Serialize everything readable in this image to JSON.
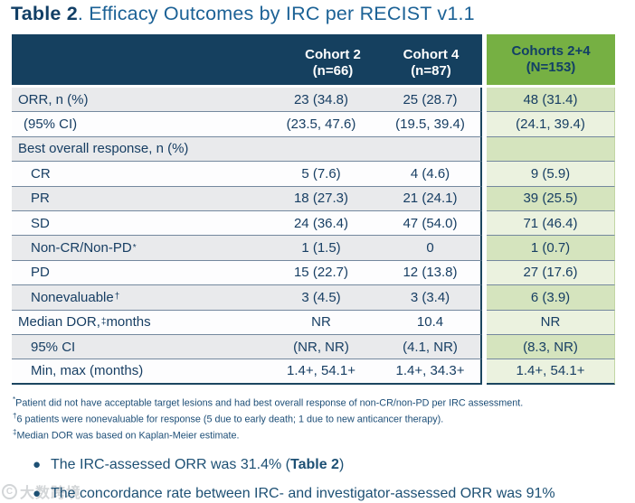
{
  "title": {
    "bold": "Table 2",
    "rest": ". Efficacy Outcomes by IRC per RECIST v1.1"
  },
  "table": {
    "header": {
      "cohort2": {
        "label": "Cohort 2",
        "sub": "(n=66)"
      },
      "cohort4": {
        "label": "Cohort 4",
        "sub": "(n=87)"
      },
      "cohorts24": {
        "label": "Cohorts 2+4",
        "sub": "(N=153)"
      }
    },
    "rows": [
      {
        "label": "ORR, n (%)",
        "sup": "",
        "after": "",
        "indent": 0,
        "c2": "23 (34.8)",
        "c4": "25 (28.7)",
        "c24": "48 (31.4)"
      },
      {
        "label": "(95% CI)",
        "sup": "",
        "after": "",
        "indent": 1,
        "c2": "(23.5, 47.6)",
        "c4": "(19.5, 39.4)",
        "c24": "(24.1, 39.4)"
      },
      {
        "label": "Best overall response, n (%)",
        "sup": "",
        "after": "",
        "indent": 0,
        "c2": "",
        "c4": "",
        "c24": ""
      },
      {
        "label": "CR",
        "sup": "",
        "after": "",
        "indent": 2,
        "c2": "5 (7.6)",
        "c4": "4 (4.6)",
        "c24": "9 (5.9)"
      },
      {
        "label": "PR",
        "sup": "",
        "after": "",
        "indent": 2,
        "c2": "18 (27.3)",
        "c4": "21 (24.1)",
        "c24": "39 (25.5)"
      },
      {
        "label": "SD",
        "sup": "",
        "after": "",
        "indent": 2,
        "c2": "24 (36.4)",
        "c4": "47 (54.0)",
        "c24": "71 (46.4)"
      },
      {
        "label": "Non-CR/Non-PD",
        "sup": "*",
        "after": "",
        "indent": 2,
        "c2": "1 (1.5)",
        "c4": "0",
        "c24": "1 (0.7)"
      },
      {
        "label": "PD",
        "sup": "",
        "after": "",
        "indent": 2,
        "c2": "15 (22.7)",
        "c4": "12 (13.8)",
        "c24": "27 (17.6)"
      },
      {
        "label": "Nonevaluable",
        "sup": "†",
        "after": "",
        "indent": 2,
        "c2": "3 (4.5)",
        "c4": "3 (3.4)",
        "c24": "6 (3.9)"
      },
      {
        "label": "Median DOR,",
        "sup": "‡",
        "after": " months",
        "indent": 0,
        "c2": "NR",
        "c4": "10.4",
        "c24": "NR"
      },
      {
        "label": "95% CI",
        "sup": "",
        "after": "",
        "indent": 2,
        "c2": "(NR, NR)",
        "c4": "(4.1, NR)",
        "c24": "(8.3, NR)"
      },
      {
        "label": "Min, max (months)",
        "sup": "",
        "after": "",
        "indent": 2,
        "c2": "1.4+, 54.1+",
        "c4": "1.4+, 34.3+",
        "c24": "1.4+, 54.1+"
      }
    ]
  },
  "footnotes": [
    {
      "marker": "*",
      "text": "Patient did not have acceptable target lesions and had best overall response of non-CR/non-PD per IRC assessment."
    },
    {
      "marker": "†",
      "text": "6 patients were nonevaluable for response (5 due to early death; 1 due to new anticancer therapy)."
    },
    {
      "marker": "‡",
      "text": "Median DOR was based on Kaplan-Meier estimate."
    }
  ],
  "bullets": [
    {
      "pre": "The IRC-assessed ORR was 31.4% (",
      "bold": "Table 2",
      "post": ")"
    },
    {
      "pre": "The concordance rate between IRC- and investigator-assessed ORR was 91%",
      "bold": "",
      "post": ""
    }
  ],
  "watermark": {
    "badge": "C",
    "text": "大数跨境"
  },
  "colors": {
    "header_navy": "#15405F",
    "accent_green": "#76B043",
    "row_gray": "#E9EAEC",
    "green_row_dark": "#D5E4BE",
    "green_row_light": "#EBF2DF",
    "text_navy": "#173E63",
    "title_navy": "#123F66"
  }
}
